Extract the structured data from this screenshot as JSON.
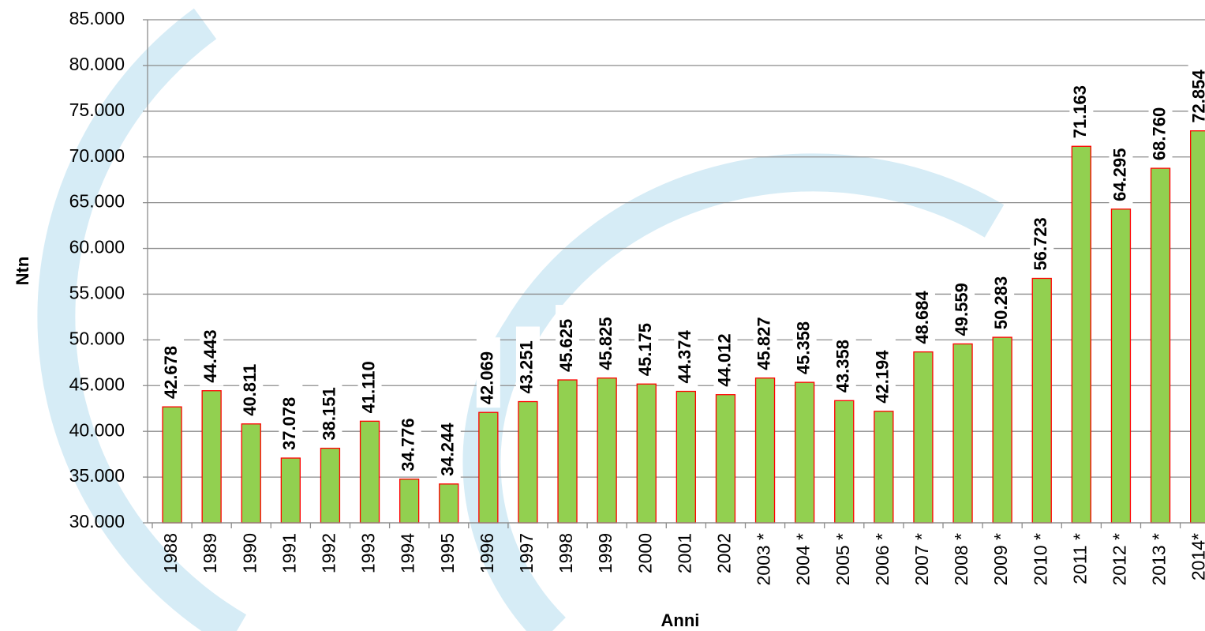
{
  "chart_data": {
    "type": "bar",
    "x_label": "Anni",
    "y_label": "Ntn",
    "categories": [
      "1988",
      "1989",
      "1990",
      "1991",
      "1992",
      "1993",
      "1994",
      "1995",
      "1996",
      "1997",
      "1998",
      "1999",
      "2000",
      "2001",
      "2002",
      "2003 *",
      "2004 *",
      "2005 *",
      "2006 *",
      "2007 *",
      "2008 *",
      "2009 *",
      "2010 *",
      "2011 *",
      "2012 *",
      "2013 *",
      "2014*"
    ],
    "values": [
      42678,
      44443,
      40811,
      37078,
      38151,
      41110,
      34776,
      34244,
      42069,
      43251,
      45625,
      45825,
      45175,
      44374,
      44012,
      45827,
      45358,
      43358,
      42194,
      48684,
      49559,
      50283,
      56723,
      71163,
      64295,
      68760,
      72854
    ],
    "value_labels": [
      "42.678",
      "44.443",
      "40.811",
      "37.078",
      "38.151",
      "41.110",
      "34.776",
      "34.244",
      "42.069",
      "43.251",
      "45.625",
      "45.825",
      "45.175",
      "44.374",
      "44.012",
      "45.827",
      "45.358",
      "43.358",
      "42.194",
      "48.684",
      "49.559",
      "50.283",
      "56.723",
      "71.163",
      "64.295",
      "68.760",
      "72.854"
    ],
    "color": "#92d050",
    "edge_color": "#ff0000",
    "ylim": [
      30000,
      85000
    ],
    "yticks": [
      {
        "value": 30000,
        "label": "30.000"
      },
      {
        "value": 35000,
        "label": "35.000"
      },
      {
        "value": 40000,
        "label": "40.000"
      },
      {
        "value": 45000,
        "label": "45.000"
      },
      {
        "value": 50000,
        "label": "50.000"
      },
      {
        "value": 55000,
        "label": "55.000"
      },
      {
        "value": 60000,
        "label": "60.000"
      },
      {
        "value": 65000,
        "label": "65.000"
      },
      {
        "value": 70000,
        "label": "70.000"
      },
      {
        "value": 75000,
        "label": "75.000"
      },
      {
        "value": 80000,
        "label": "80.000"
      },
      {
        "value": 85000,
        "label": "85.000"
      }
    ],
    "grid": true
  }
}
